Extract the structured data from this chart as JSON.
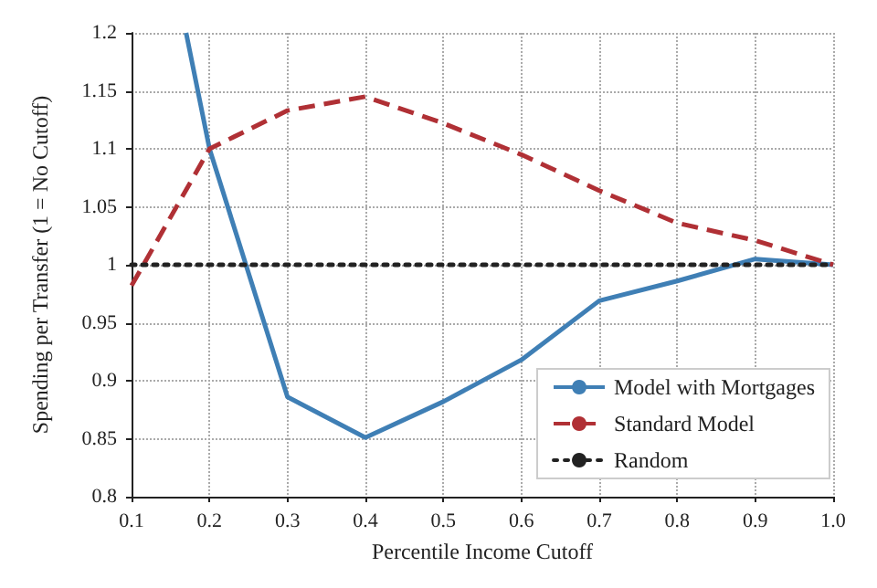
{
  "chart_data": {
    "type": "line",
    "xlabel": "Percentile Income Cutoff",
    "ylabel": "Spending per Transfer (1 = No Cutoff)",
    "x": [
      0.1,
      0.2,
      0.3,
      0.4,
      0.5,
      0.6,
      0.7,
      0.8,
      0.9,
      1.0
    ],
    "series": [
      {
        "name": "Model with Mortgages",
        "color": "#3f7fb5",
        "line_style": "solid",
        "x": [
          0.17,
          0.2,
          0.3,
          0.4,
          0.5,
          0.6,
          0.7,
          0.8,
          0.9,
          1.0
        ],
        "values": [
          1.2,
          1.1,
          0.886,
          0.851,
          0.882,
          0.918,
          0.969,
          0.986,
          1.005,
          1.0
        ]
      },
      {
        "name": "Standard Model",
        "color": "#b03035",
        "line_style": "dashed",
        "values": [
          0.982,
          1.1,
          1.133,
          1.145,
          1.122,
          1.095,
          1.064,
          1.036,
          1.021,
          1.0
        ]
      },
      {
        "name": "Random",
        "color": "#222222",
        "line_style": "dotted",
        "values": [
          1,
          1,
          1,
          1,
          1,
          1,
          1,
          1,
          1,
          1
        ]
      }
    ],
    "xlim": [
      0.1,
      1.0
    ],
    "xticks": [
      0.1,
      0.2,
      0.3,
      0.4,
      0.5,
      0.6,
      0.7,
      0.8,
      0.9,
      {
        "value": 1.0,
        "label": "1.0"
      }
    ],
    "ylim": [
      0.8,
      1.2
    ],
    "yticks": [
      0.8,
      0.85,
      0.9,
      0.95,
      1,
      1.05,
      1.1,
      1.15,
      1.2
    ],
    "grid": true,
    "legend": "bottom right",
    "marker": "none"
  }
}
